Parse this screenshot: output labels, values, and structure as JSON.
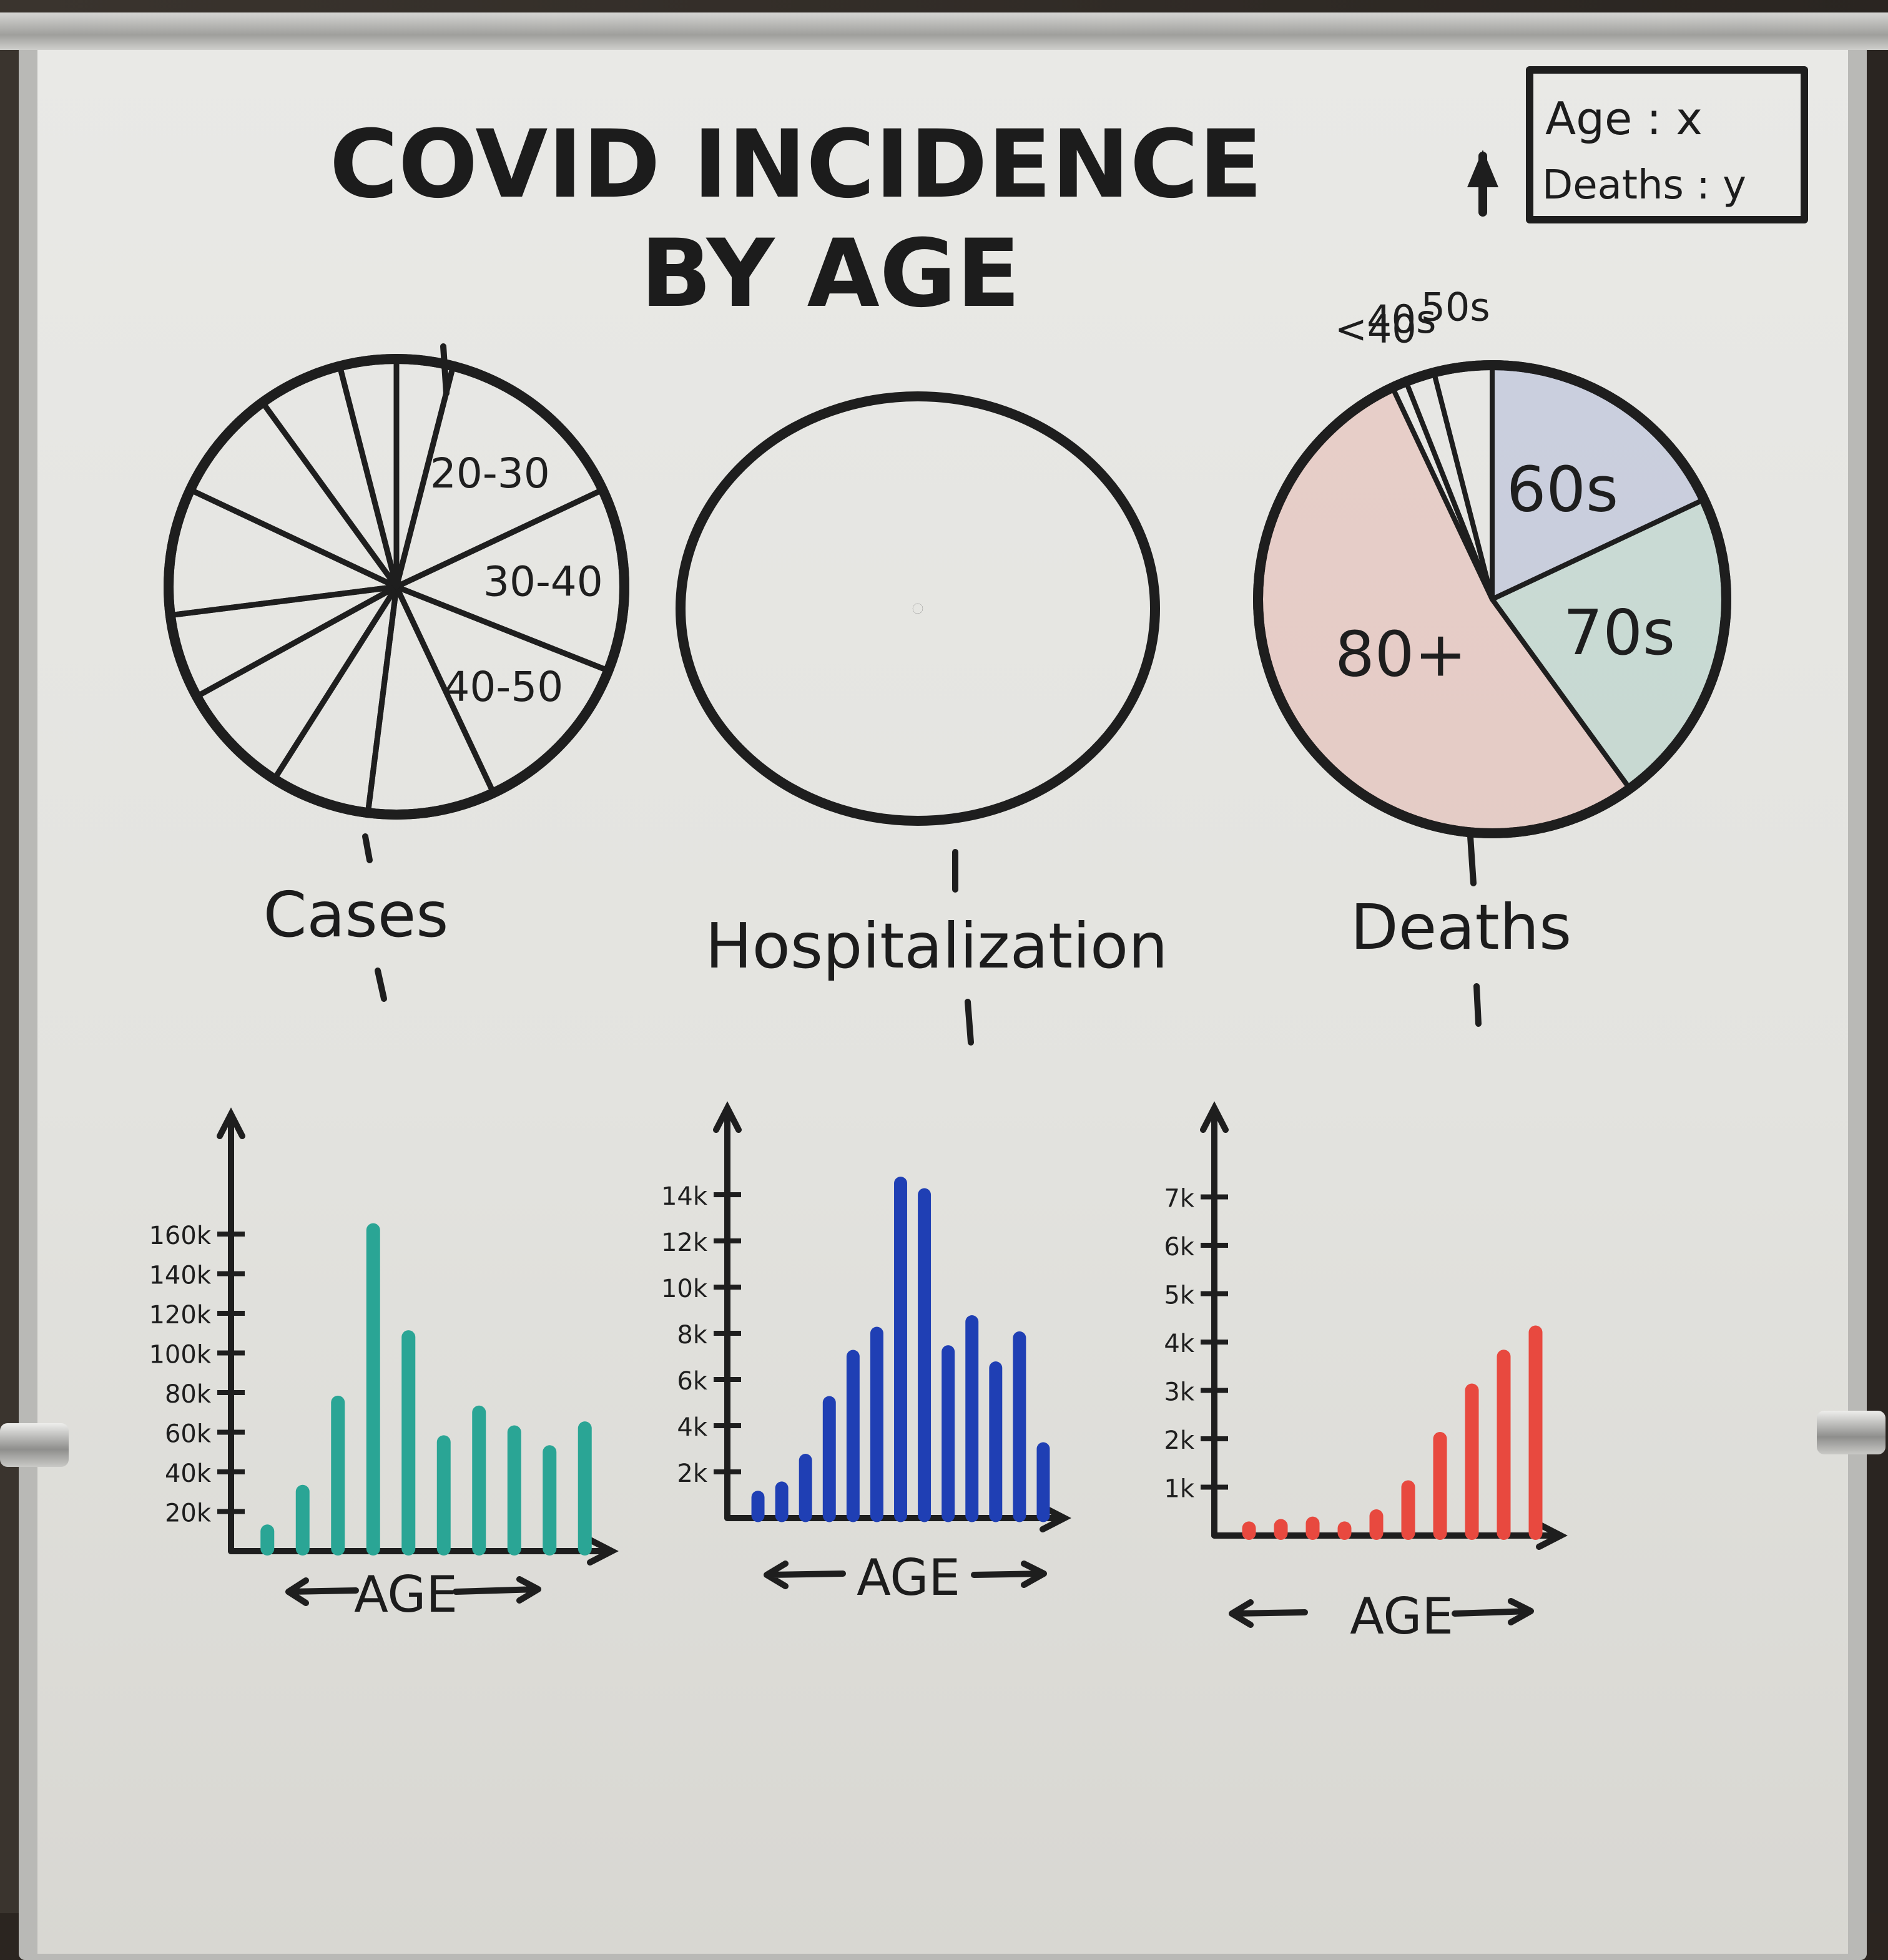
{
  "title_line1": "COVID INCIDENCE",
  "title_line2": "BY AGE",
  "legend": {
    "line1": "Age : x",
    "line2": "Deaths : y"
  },
  "colors": {
    "ink": "#1e1e1e",
    "cases": "#2aa595",
    "hospitalization": "#1f3fb4",
    "deaths": "#e8493f",
    "deaths_70s": "#2f9a8a",
    "deaths_60s": "#2f4fc0"
  },
  "chart_data": [
    {
      "type": "pie",
      "title": "Cases",
      "slice_labels": [
        "20-30",
        "30-40",
        "40-50"
      ],
      "series": [
        {
          "values": [
            4,
            14,
            13,
            12,
            9,
            7,
            8,
            6,
            9,
            8,
            6,
            4
          ]
        }
      ]
    },
    {
      "type": "pie",
      "title": "Hospitalization",
      "series": [
        {
          "values": []
        }
      ]
    },
    {
      "type": "pie",
      "title": "Deaths",
      "categories": [
        "<40",
        "40s",
        "50s",
        "60s",
        "70s",
        "80+"
      ],
      "series": [
        {
          "values": [
            1,
            2,
            4,
            18,
            22,
            53
          ]
        }
      ]
    },
    {
      "type": "bar",
      "xlabel": "AGE",
      "ylim": [
        0,
        200000
      ],
      "yticks": [
        "20k",
        "40k",
        "60k",
        "80k",
        "100k",
        "120k",
        "140k",
        "160k"
      ],
      "ytick_values": [
        20000,
        40000,
        60000,
        80000,
        100000,
        120000,
        140000,
        160000
      ],
      "series": [
        {
          "values": [
            10000,
            30000,
            75000,
            162000,
            108000,
            55000,
            70000,
            60000,
            50000,
            62000
          ]
        }
      ]
    },
    {
      "type": "bar",
      "xlabel": "AGE",
      "ylim": [
        0,
        16000
      ],
      "yticks": [
        "2k",
        "4k",
        "6k",
        "8k",
        "10k",
        "12k",
        "14k"
      ],
      "ytick_values": [
        2000,
        4000,
        6000,
        8000,
        10000,
        12000,
        14000
      ],
      "series": [
        {
          "values": [
            900,
            1300,
            2500,
            5000,
            7000,
            8000,
            14500,
            14000,
            7200,
            8500,
            6500,
            7800,
            3000
          ]
        }
      ]
    },
    {
      "type": "bar",
      "xlabel": "AGE",
      "ylim": [
        0,
        8000
      ],
      "yticks": [
        "1k",
        "2k",
        "3k",
        "4k",
        "5k",
        "6k",
        "7k"
      ],
      "ytick_values": [
        1000,
        2000,
        3000,
        4000,
        5000,
        6000,
        7000
      ],
      "series": [
        {
          "values": [
            150,
            200,
            250,
            150,
            400,
            1000,
            2000,
            3000,
            3700,
            4200
          ]
        }
      ]
    }
  ]
}
